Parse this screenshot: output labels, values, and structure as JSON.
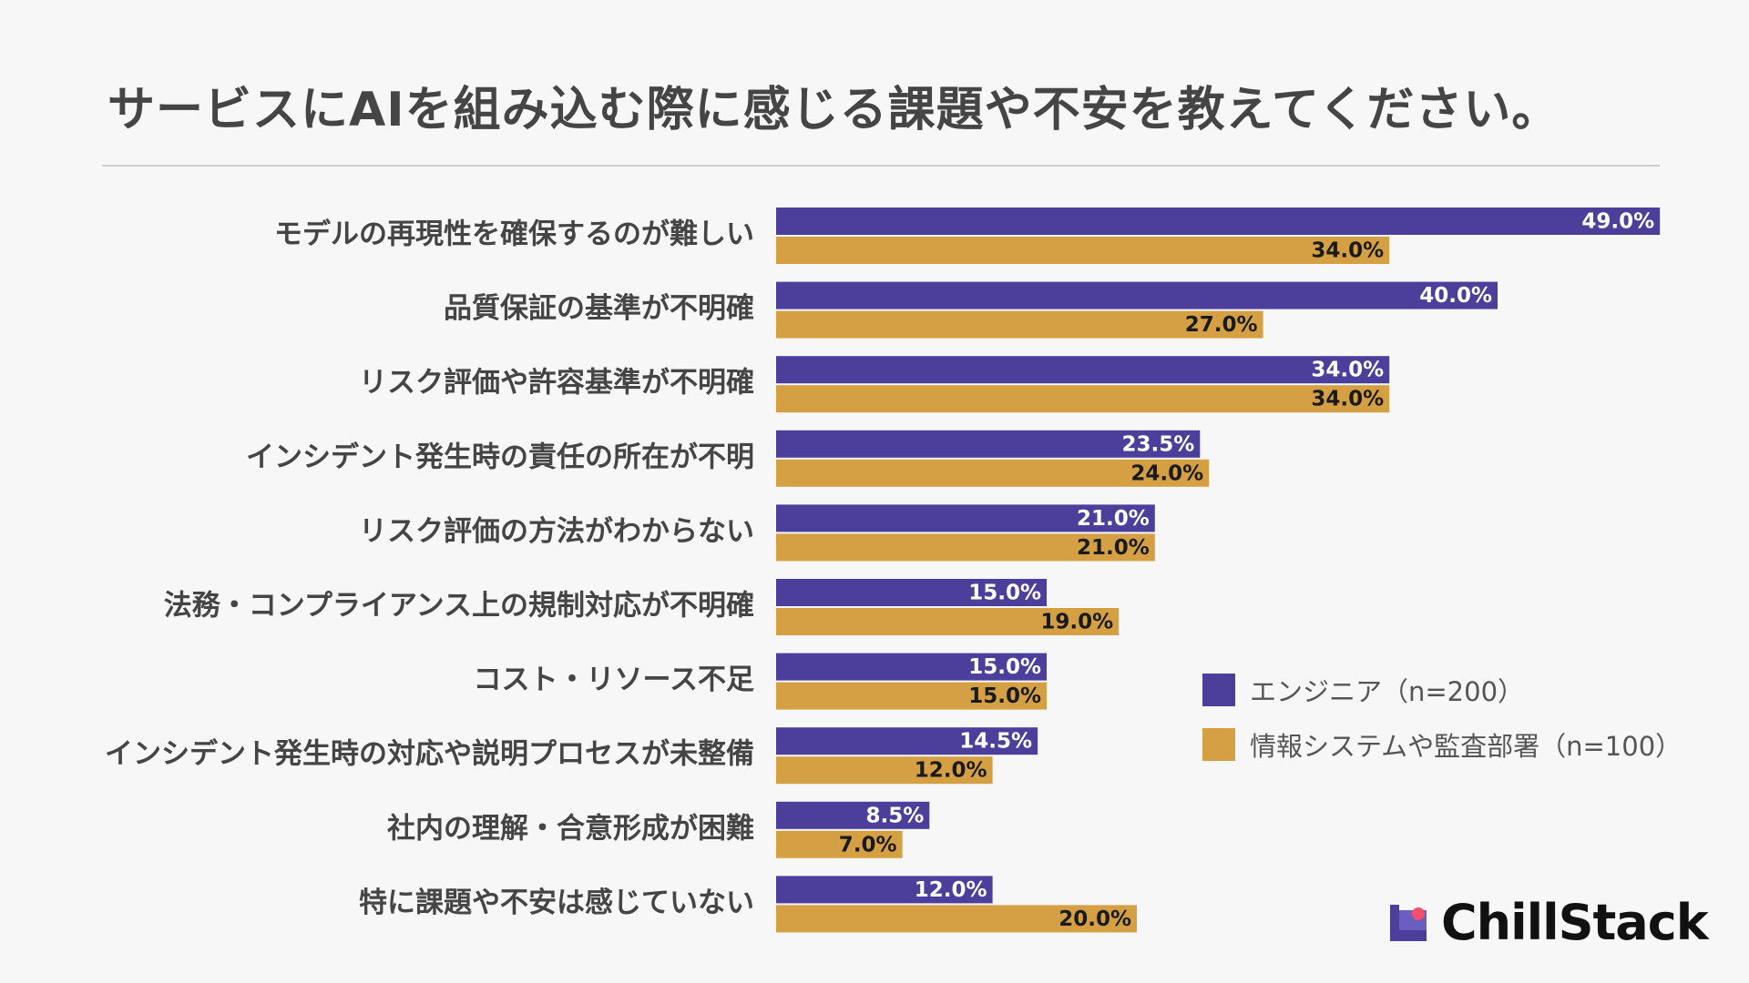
{
  "title": "サービスにAIを組み込む際に感じる課題や不安を教えてください。",
  "colors": {
    "engineer": "#4b3f9b",
    "audit": "#d4a043",
    "logo_dot": "#f0506e"
  },
  "chart_data": {
    "type": "bar",
    "orientation": "horizontal",
    "title": "サービスにAIを組み込む際に感じる課題や不安を教えてください。",
    "categories": [
      "モデルの再現性を確保するのが難しい",
      "品質保証の基準が不明確",
      "リスク評価や許容基準が不明確",
      "インシデント発生時の責任の所在が不明",
      "リスク評価の方法がわからない",
      "法務・コンプライアンス上の規制対応が不明確",
      "コスト・リソース不足",
      "インシデント発生時の対応や説明プロセスが未整備",
      "社内の理解・合意形成が困難",
      "特に課題や不安は感じていない"
    ],
    "series": [
      {
        "name": "エンジニア（n=200）",
        "values": [
          49.0,
          40.0,
          34.0,
          23.5,
          21.0,
          15.0,
          15.0,
          14.5,
          8.5,
          12.0
        ],
        "labels": [
          "49.0%",
          "40.0%",
          "34.0%",
          "23.5%",
          "21.0%",
          "15.0%",
          "15.0%",
          "14.5%",
          "8.5%",
          "12.0%"
        ]
      },
      {
        "name": "情報システムや監査部署（n=100）",
        "values": [
          34.0,
          27.0,
          34.0,
          24.0,
          21.0,
          19.0,
          15.0,
          12.0,
          7.0,
          20.0
        ],
        "labels": [
          "34.0%",
          "27.0%",
          "34.0%",
          "24.0%",
          "21.0%",
          "19.0%",
          "15.0%",
          "12.0%",
          "7.0%",
          "20.0%"
        ]
      }
    ],
    "unit": "%",
    "xlim": [
      0,
      50
    ],
    "legend_position": "bottom-right"
  },
  "logo": {
    "text": "ChillStack"
  }
}
